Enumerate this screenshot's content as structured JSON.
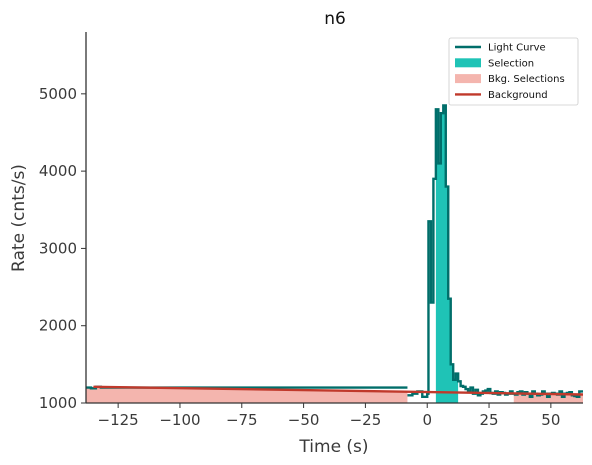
{
  "chart_data": {
    "type": "line",
    "title": "n6",
    "xlabel": "Time (s)",
    "ylabel": "Rate (cnts/s)",
    "xlim": [
      -138,
      63
    ],
    "ylim": [
      1000,
      5800
    ],
    "x_ticks": [
      -125,
      -100,
      -75,
      -50,
      -25,
      0,
      25,
      50
    ],
    "x_tick_labels": [
      "−125",
      "−100",
      "−75",
      "−50",
      "−25",
      "0",
      "25",
      "50"
    ],
    "y_ticks": [
      1000,
      2000,
      3000,
      4000,
      5000
    ],
    "y_tick_labels": [
      "1000",
      "2000",
      "3000",
      "4000",
      "5000"
    ],
    "grid": false,
    "legend_position": "top-right",
    "colors": {
      "light_curve": "#006e6a",
      "selection": "#1fc3b6",
      "bkg_selection": "#f4b5ae",
      "background": "#c0392b"
    },
    "legend": [
      {
        "label": "Light Curve",
        "kind": "line",
        "color": "#006e6a"
      },
      {
        "label": "Selection",
        "kind": "patch",
        "color": "#1fc3b6"
      },
      {
        "label": "Bkg. Selections",
        "kind": "patch",
        "color": "#f4b5ae"
      },
      {
        "label": "Background",
        "kind": "line",
        "color": "#c0392b"
      }
    ],
    "series": [
      {
        "name": "Light Curve",
        "kind": "step",
        "x": [
          -138,
          -136,
          -134,
          -132,
          -130,
          -8,
          -6,
          -4,
          -2,
          0,
          0.5,
          1.5,
          2.5,
          3.5,
          4.5,
          5.5,
          6.5,
          7.5,
          8.5,
          9.5,
          10.5,
          11.5,
          12.5,
          13.5,
          14.5,
          15.5,
          16.5,
          17.5,
          18.5,
          19.5,
          20.5,
          21.5,
          22.5,
          23.5,
          24.5,
          25.5,
          26.5,
          27.5,
          28.5,
          29.5,
          30.5,
          31.5,
          32.5,
          33.5,
          34.5,
          35.5,
          36.5,
          37.5,
          38.5,
          39.5,
          40.5,
          41.5,
          42.5,
          43.5,
          44.5,
          45.5,
          46.5,
          47.5,
          48.5,
          49.5,
          50.5,
          51.5,
          52.5,
          53.5,
          54.5,
          55.5,
          56.5,
          57.5,
          58.5,
          59.5,
          60.5,
          61.5,
          62.5
        ],
        "y": [
          1200,
          1190,
          1210,
          1200,
          1200,
          1100,
          1120,
          1150,
          1080,
          1120,
          3350,
          2300,
          3900,
          4800,
          4100,
          4750,
          4850,
          3800,
          2350,
          1500,
          1300,
          1380,
          1280,
          1220,
          1210,
          1180,
          1150,
          1200,
          1120,
          1170,
          1100,
          1120,
          1150,
          1160,
          1180,
          1130,
          1120,
          1150,
          1110,
          1140,
          1130,
          1110,
          1120,
          1150,
          1120,
          1110,
          1140,
          1150,
          1110,
          1140,
          1120,
          1080,
          1150,
          1120,
          1100,
          1110,
          1150,
          1120,
          1080,
          1120,
          1130,
          1120,
          1110,
          1150,
          1080,
          1120,
          1130,
          1140,
          1100,
          1090,
          1080,
          1150,
          1150
        ]
      },
      {
        "name": "Background",
        "kind": "line",
        "x": [
          -135,
          63
        ],
        "y": [
          1210,
          1110
        ]
      }
    ],
    "selection_interval": [
      3.5,
      12.5
    ],
    "bkg_intervals": [
      [
        -138,
        -8
      ],
      [
        35,
        63
      ]
    ]
  }
}
